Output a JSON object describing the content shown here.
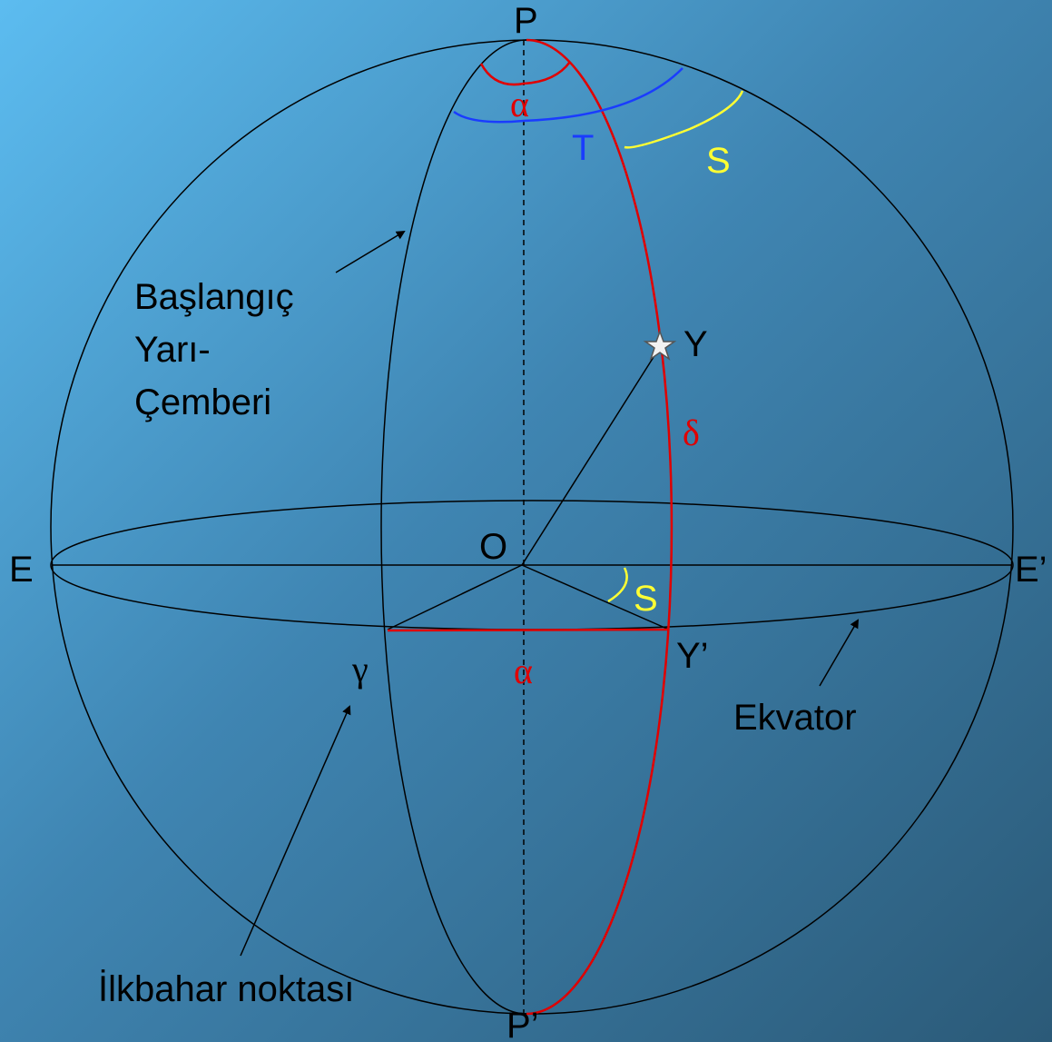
{
  "labels": {
    "P": "P",
    "P_prime": "P’",
    "E": "E",
    "E_prime": "E’",
    "O": "O",
    "Y": "Y",
    "Y_prime": "Y’",
    "T": "T",
    "S_top": "S",
    "S_bottom": "S",
    "alpha_top": "α",
    "alpha_bottom": "α",
    "delta": "δ",
    "gamma": "γ",
    "start_meridian": [
      "Başlangıç",
      "Yarı-",
      "Çemberi"
    ],
    "equator": "Ekvator",
    "vernal_point": "İlkbahar noktası"
  }
}
